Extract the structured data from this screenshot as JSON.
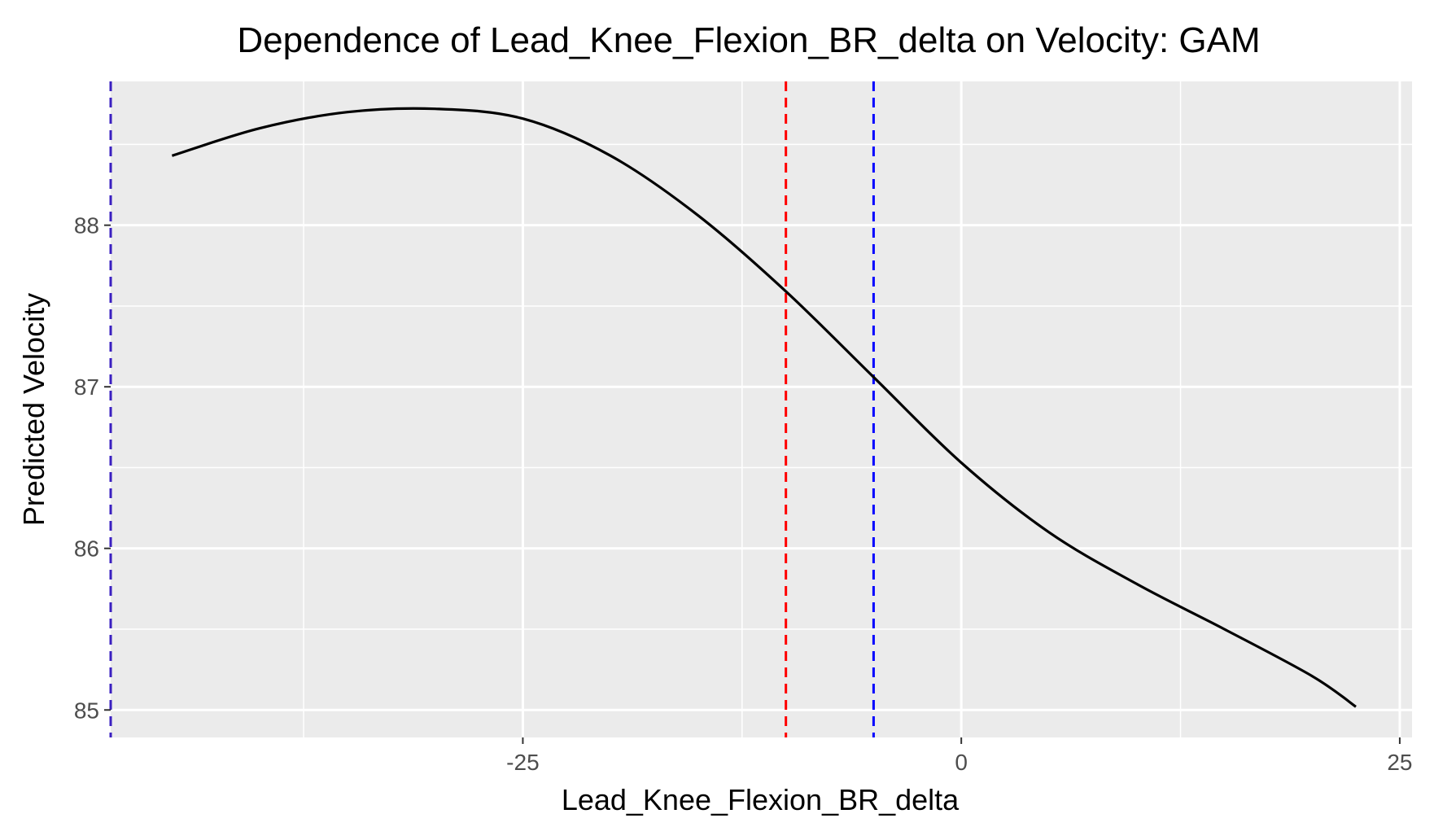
{
  "chart_data": {
    "type": "line",
    "title": "Dependence of Lead_Knee_Flexion_BR_delta on Velocity: GAM",
    "xlabel": "Lead_Knee_Flexion_BR_delta",
    "ylabel": "Predicted Velocity",
    "xlim": [
      -48.5,
      25.7
    ],
    "ylim": [
      84.83,
      88.89
    ],
    "x_ticks": [
      -25,
      0,
      25
    ],
    "x_tick_labels": [
      "-25",
      "0",
      "25"
    ],
    "x_minor_ticks": [
      -37.5,
      -12.5,
      12.5
    ],
    "y_ticks": [
      85,
      86,
      87,
      88
    ],
    "y_tick_labels": [
      "85",
      "86",
      "87",
      "88"
    ],
    "y_minor_ticks": [
      85.5,
      86.5,
      87.5,
      88.5
    ],
    "grid": true,
    "panel_color": "#EBEBEB",
    "series": [
      {
        "color": "#000000",
        "x": [
          -45.0,
          -40.0,
          -35.0,
          -30.0,
          -25.0,
          -20.0,
          -15.0,
          -10.0,
          -5.0,
          0.0,
          5.0,
          10.0,
          15.0,
          20.0,
          22.5
        ],
        "y": [
          88.43,
          88.6,
          88.7,
          88.72,
          88.66,
          88.43,
          88.06,
          87.59,
          87.06,
          86.53,
          86.1,
          85.78,
          85.5,
          85.21,
          85.02
        ]
      }
    ],
    "reference_lines": [
      {
        "x": -48.5,
        "color": "#3A1FC0",
        "style": "dashed"
      },
      {
        "x": -10.0,
        "color": "#FF0000",
        "style": "dashed"
      },
      {
        "x": -5.0,
        "color": "#0000FF",
        "style": "dashed"
      }
    ]
  }
}
